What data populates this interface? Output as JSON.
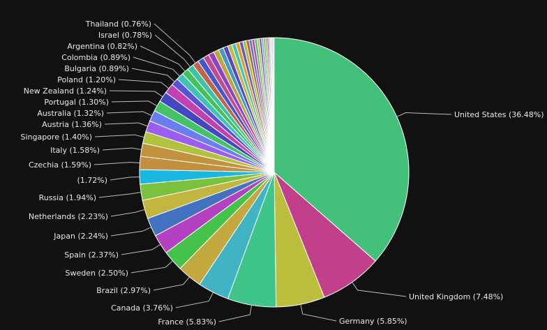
{
  "chart_data": {
    "type": "pie",
    "start_angle_deg": 0,
    "direction": "clockwise",
    "slices": [
      {
        "label": "United States (36.48%)",
        "value": 36.48,
        "color": "#43c17a"
      },
      {
        "label": "United Kingdom (7.48%)",
        "value": 7.48,
        "color": "#c2408a"
      },
      {
        "label": "Germany (5.85%)",
        "value": 5.85,
        "color": "#bcbf3e"
      },
      {
        "label": "France (5.83%)",
        "value": 5.83,
        "color": "#3fc48a"
      },
      {
        "label": "Canada (3.76%)",
        "value": 3.76,
        "color": "#40b4c2"
      },
      {
        "label": "Brazil (2.97%)",
        "value": 2.97,
        "color": "#c2a83e"
      },
      {
        "label": "Sweden (2.50%)",
        "value": 2.5,
        "color": "#44c24a"
      },
      {
        "label": "Spain (2.37%)",
        "value": 2.37,
        "color": "#b440c2"
      },
      {
        "label": "Japan (2.24%)",
        "value": 2.24,
        "color": "#4372c2"
      },
      {
        "label": "Netherlands (2.23%)",
        "value": 2.23,
        "color": "#c2b63e"
      },
      {
        "label": "Russia (1.94%)",
        "value": 1.94,
        "color": "#7ac23e"
      },
      {
        "label": "(1.72%)",
        "value": 1.72,
        "color": "#18b8e0"
      },
      {
        "label": "Czechia (1.59%)",
        "value": 1.59,
        "color": "#c2903e"
      },
      {
        "label": "Italy (1.58%)",
        "value": 1.58,
        "color": "#c2923e"
      },
      {
        "label": "Singapore (1.40%)",
        "value": 1.4,
        "color": "#b0c23e"
      },
      {
        "label": "Austria (1.36%)",
        "value": 1.36,
        "color": "#9a5ef0"
      },
      {
        "label": "Australia (1.32%)",
        "value": 1.32,
        "color": "#6a7ef0"
      },
      {
        "label": "Portugal (1.30%)",
        "value": 1.3,
        "color": "#44c266"
      },
      {
        "label": "New Zealand (1.24%)",
        "value": 1.24,
        "color": "#4446c2"
      },
      {
        "label": "Poland (1.20%)",
        "value": 1.2,
        "color": "#c240b0"
      },
      {
        "label": "Bulgaria (0.89%)",
        "value": 0.89,
        "color": "#5a52d6"
      },
      {
        "label": "Colombia (0.89%)",
        "value": 0.89,
        "color": "#40c2b6"
      },
      {
        "label": "Argentina (0.82%)",
        "value": 0.82,
        "color": "#44c25a"
      },
      {
        "label": "Israel (0.78%)",
        "value": 0.78,
        "color": "#3ec2a4"
      },
      {
        "label": "Thailand (0.76%)",
        "value": 0.76,
        "color": "#c2644a"
      },
      {
        "label": "",
        "value": 0.74,
        "color": "#4456d0"
      },
      {
        "label": "",
        "value": 0.72,
        "color": "#c24a90"
      },
      {
        "label": "",
        "value": 0.68,
        "color": "#8e44c2"
      },
      {
        "label": "",
        "value": 0.64,
        "color": "#c2a43e"
      },
      {
        "label": "",
        "value": 0.6,
        "color": "#3e9ec2"
      },
      {
        "label": "",
        "value": 0.56,
        "color": "#5c44c2"
      },
      {
        "label": "",
        "value": 0.52,
        "color": "#c2bc3e"
      },
      {
        "label": "",
        "value": 0.48,
        "color": "#44c2c0"
      },
      {
        "label": "",
        "value": 0.45,
        "color": "#e0a020"
      },
      {
        "label": "",
        "value": 0.42,
        "color": "#6a52c2"
      },
      {
        "label": "",
        "value": 0.39,
        "color": "#9ec23e"
      },
      {
        "label": "",
        "value": 0.36,
        "color": "#c25a40"
      },
      {
        "label": "",
        "value": 0.34,
        "color": "#4a7ec2"
      },
      {
        "label": "",
        "value": 0.32,
        "color": "#c2409e"
      },
      {
        "label": "",
        "value": 0.3,
        "color": "#40c27a"
      },
      {
        "label": "",
        "value": 0.28,
        "color": "#b8c23e"
      },
      {
        "label": "",
        "value": 0.26,
        "color": "#7a40c2"
      },
      {
        "label": "",
        "value": 0.24,
        "color": "#3ec2d0"
      },
      {
        "label": "",
        "value": 0.22,
        "color": "#c28a3e"
      },
      {
        "label": "",
        "value": 0.2,
        "color": "#4ac24a"
      },
      {
        "label": "",
        "value": 0.19,
        "color": "#c2406a"
      },
      {
        "label": "",
        "value": 0.18,
        "color": "#8ac2e0"
      },
      {
        "label": "",
        "value": 0.17,
        "color": "#d0d0f0"
      },
      {
        "label": "",
        "value": 0.16,
        "color": "#c2c2c2"
      },
      {
        "label": "",
        "value": 0.15,
        "color": "#e0c0e0"
      }
    ]
  }
}
